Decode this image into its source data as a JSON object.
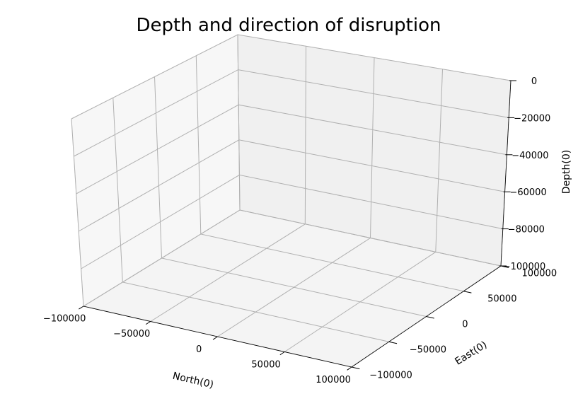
{
  "chart_data": {
    "type": "scatter",
    "subtype": "3d",
    "title": "Depth and direction of disruption",
    "xlabel": "North(0)",
    "ylabel": "East(0)",
    "zlabel": "Depth(0)",
    "xlim": [
      -100000,
      100000
    ],
    "ylim": [
      -100000,
      100000
    ],
    "zlim": [
      -100000,
      0
    ],
    "xticks": [
      -100000,
      -50000,
      0,
      50000,
      100000
    ],
    "yticks": [
      -100000,
      -50000,
      0,
      50000,
      100000
    ],
    "zticks": [
      0,
      -20000,
      -40000,
      -60000,
      -80000,
      -100000
    ],
    "xtick_labels": [
      "−100000",
      "−50000",
      "0",
      "50000",
      "100000"
    ],
    "ytick_labels": [
      "−100000",
      "−50000",
      "0",
      "50000",
      "100000"
    ],
    "ztick_labels": [
      "0",
      "−20000",
      "−40000",
      "−60000",
      "−80000",
      "−100000"
    ],
    "grid": true,
    "series": [],
    "colors": {
      "pane_left": "#f7f7f7",
      "pane_back": "#f0f0f0",
      "pane_floor": "#f4f4f4",
      "grid": "#b0b0b0"
    }
  }
}
